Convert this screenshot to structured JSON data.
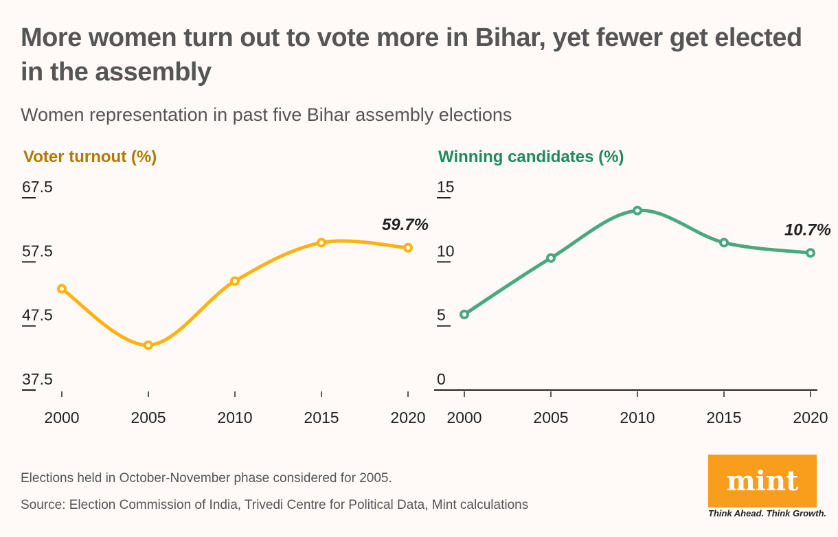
{
  "title": "More women turn out to vote more in Bihar, yet fewer get elected in the assembly",
  "subtitle": "Women representation in past five Bihar assembly elections",
  "notes": {
    "note": "Elections held in October-November phase considered for 2005.",
    "source": "Source: Election Commission of India, Trivedi Centre for Political Data, Mint calculations"
  },
  "logo": {
    "text": "mint",
    "tagline": "Think Ahead. Think Growth.",
    "color": "#f99d1c"
  },
  "chart_data": [
    {
      "type": "line",
      "title": "Voter turnout (%)",
      "color": "#ffb20f",
      "title_color": "#b07a00",
      "x": [
        "2000",
        "2005",
        "2010",
        "2015",
        "2020"
      ],
      "values": [
        53.3,
        44.5,
        54.5,
        60.5,
        59.7
      ],
      "yticks": [
        "67.5",
        "57.5",
        "47.5",
        "37.5"
      ],
      "ylim": [
        37.5,
        67.5
      ],
      "annotation": "59.7%",
      "baseline": false
    },
    {
      "type": "line",
      "title": "Winning candidates (%)",
      "color": "#48a97f",
      "title_color": "#1f8a5e",
      "x": [
        "2000",
        "2005",
        "2010",
        "2015",
        "2020"
      ],
      "values": [
        5.9,
        10.3,
        14.0,
        11.5,
        10.7
      ],
      "yticks": [
        "15",
        "10",
        "5",
        "0"
      ],
      "ylim": [
        0,
        15
      ],
      "annotation": "10.7%",
      "baseline": true
    }
  ]
}
